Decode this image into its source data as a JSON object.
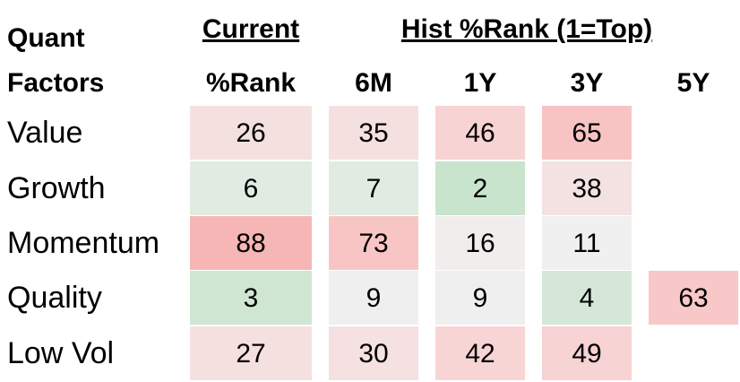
{
  "header": {
    "factor_title": [
      "Quant",
      "Factors"
    ],
    "current_title": [
      "Current",
      "%Rank"
    ],
    "hist_title": "Hist %Rank (1=Top)",
    "periods": [
      "6M",
      "1Y",
      "3Y",
      "5Y"
    ]
  },
  "table": {
    "rows": [
      {
        "label": "Value",
        "values": [
          26,
          35,
          46,
          65,
          null
        ],
        "colors": [
          "#f5e0e0",
          "#f5e0e0",
          "#f7d3d3",
          "#f8c3c3",
          null
        ]
      },
      {
        "label": "Growth",
        "values": [
          6,
          7,
          2,
          38,
          null
        ],
        "colors": [
          "#e0ece2",
          "#e0ece2",
          "#c8e4cc",
          "#f4e2e2",
          null
        ]
      },
      {
        "label": "Momentum",
        "values": [
          88,
          73,
          16,
          11,
          null
        ],
        "colors": [
          "#f7b6b6",
          "#f8c5c5",
          "#f2eded",
          "#f0f0f0",
          null
        ]
      },
      {
        "label": "Quality",
        "values": [
          3,
          9,
          9,
          4,
          63
        ],
        "colors": [
          "#cfe6d3",
          "#efefef",
          "#efefef",
          "#d5e8d7",
          "#f8c8c8"
        ]
      },
      {
        "label": "Low Vol",
        "values": [
          27,
          30,
          42,
          49,
          null
        ],
        "colors": [
          "#f5e0e0",
          "#f5e1e1",
          "#f7d5d5",
          "#f7d3d3",
          null
        ]
      }
    ]
  }
}
